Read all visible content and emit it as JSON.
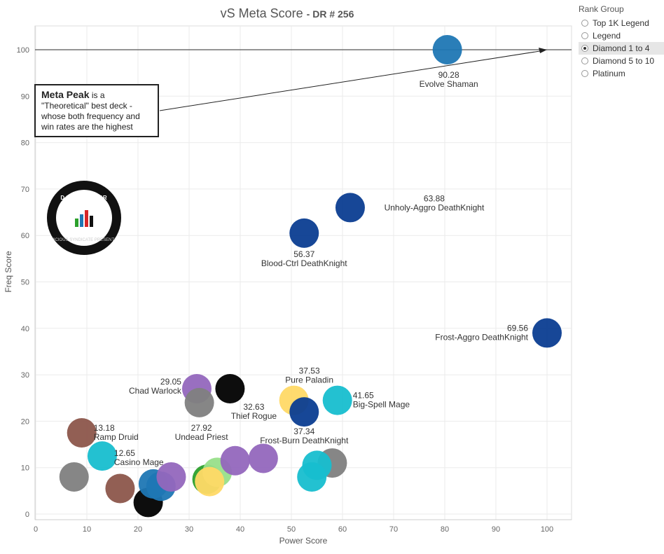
{
  "header": {
    "title": "vS Meta Score",
    "subtitle": "- DR # 256"
  },
  "legend": {
    "title": "Rank Group",
    "items": [
      {
        "label": "Top 1K Legend",
        "selected": false
      },
      {
        "label": "Legend",
        "selected": false
      },
      {
        "label": "Diamond 1 to 4",
        "selected": true
      },
      {
        "label": "Diamond 5 to 10",
        "selected": false
      },
      {
        "label": "Platinum",
        "selected": false
      }
    ]
  },
  "annotation": {
    "bold": "Meta Peak",
    "text1": " is a",
    "text2": "\"Theoretical\" best deck -",
    "text3": "whose both frequency and",
    "text4": "win rates are the highest"
  },
  "logo": {
    "text": "DATA REAPER REPORT",
    "subtext": "VICIOUS SYNDICATE PRESENTS"
  },
  "chart_data": {
    "type": "scatter",
    "title": "vS Meta Score - DR # 256",
    "xlabel": "Power Score",
    "ylabel": "Freq Score",
    "xlim": [
      0,
      102
    ],
    "ylim": [
      -1,
      105
    ],
    "xticks": [
      0,
      10,
      20,
      30,
      40,
      50,
      60,
      70,
      80,
      90,
      100
    ],
    "yticks": [
      0,
      10,
      20,
      30,
      40,
      50,
      60,
      70,
      80,
      90,
      100
    ],
    "grid": true,
    "reference_line_y": 100,
    "points": [
      {
        "x": 80.5,
        "y": 100,
        "color": "#1f77b4",
        "score": "90.28",
        "name": "Evolve Shaman"
      },
      {
        "x": 61.5,
        "y": 66,
        "color": "#0b3d91",
        "score": "63.88",
        "name": "Unholy-Aggro DeathKnight"
      },
      {
        "x": 52.5,
        "y": 60.5,
        "color": "#0b3d91",
        "score": "56.37",
        "name": "Blood-Ctrl DeathKnight"
      },
      {
        "x": 100,
        "y": 39,
        "color": "#0b3d91",
        "score": "69.56",
        "name": "Frost-Aggro DeathKnight"
      },
      {
        "x": 38,
        "y": 27,
        "color": "#000000",
        "score": "32.63",
        "name": "Thief Rogue"
      },
      {
        "x": 31.5,
        "y": 27,
        "color": "#9467bd",
        "score": "29.05",
        "name": "Chad Warlock"
      },
      {
        "x": 32,
        "y": 24,
        "color": "#7f7f7f",
        "score": "27.92",
        "name": "Undead Priest"
      },
      {
        "x": 50.5,
        "y": 24.5,
        "color": "#ffd966",
        "score": "37.53",
        "name": "Pure Paladin"
      },
      {
        "x": 59,
        "y": 24.5,
        "color": "#17becf",
        "score": "41.65",
        "name": "Big-Spell Mage"
      },
      {
        "x": 52.5,
        "y": 22,
        "color": "#0b3d91",
        "score": "37.34",
        "name": "Frost-Burn DeathKnight"
      },
      {
        "x": 9,
        "y": 17.5,
        "color": "#8c564b",
        "score": "13.18",
        "name": "Ramp Druid"
      },
      {
        "x": 13,
        "y": 12.5,
        "color": "#17becf",
        "score": "12.65",
        "name": "Casino Mage"
      },
      {
        "x": 7.5,
        "y": 8,
        "color": "#7f7f7f",
        "score": "",
        "name": ""
      },
      {
        "x": 16.5,
        "y": 5.5,
        "color": "#8c564b",
        "score": "",
        "name": ""
      },
      {
        "x": 22,
        "y": 2.5,
        "color": "#000000",
        "score": "",
        "name": ""
      },
      {
        "x": 23,
        "y": 6.5,
        "color": "#1f77b4",
        "score": "",
        "name": ""
      },
      {
        "x": 24.5,
        "y": 6,
        "color": "#1f77b4",
        "score": "",
        "name": ""
      },
      {
        "x": 26.5,
        "y": 8,
        "color": "#9467bd",
        "score": "",
        "name": ""
      },
      {
        "x": 33.5,
        "y": 7.5,
        "color": "#2ca02c",
        "score": "",
        "name": ""
      },
      {
        "x": 35.5,
        "y": 9,
        "color": "#98df8a",
        "score": "",
        "name": ""
      },
      {
        "x": 34,
        "y": 7,
        "color": "#ffd966",
        "score": "",
        "name": ""
      },
      {
        "x": 39,
        "y": 11.5,
        "color": "#9467bd",
        "score": "",
        "name": ""
      },
      {
        "x": 44.5,
        "y": 12,
        "color": "#9467bd",
        "score": "",
        "name": ""
      },
      {
        "x": 58,
        "y": 11,
        "color": "#7f7f7f",
        "score": "",
        "name": ""
      },
      {
        "x": 55,
        "y": 10.5,
        "color": "#17becf",
        "score": "",
        "name": ""
      },
      {
        "x": 54,
        "y": 8,
        "color": "#17becf",
        "score": "",
        "name": ""
      }
    ]
  }
}
